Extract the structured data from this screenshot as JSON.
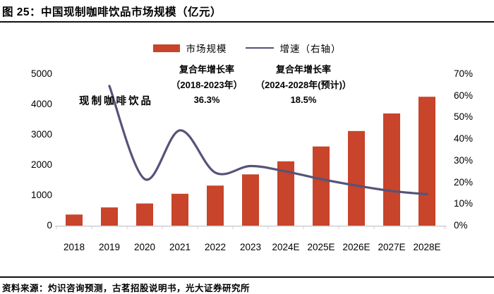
{
  "header": {
    "title": "图 25：中国现制咖啡饮品市场规模（亿元）"
  },
  "legend": {
    "items": [
      {
        "swatch": "bar-swatch",
        "label": "市场规模"
      },
      {
        "swatch": "line-swatch",
        "label": "增速（右轴）"
      }
    ]
  },
  "annotations": {
    "series_label": "现制咖啡饮品",
    "col1": {
      "line1": "复合年增长率",
      "line2": "（2018-2023年）",
      "value": "36.3%"
    },
    "col2": {
      "line1": "复合年增长率",
      "line2": "（2024-2028年(预计)）",
      "value": "18.5%"
    }
  },
  "chart_data": {
    "type": "combo",
    "title": "中国现制咖啡饮品市场规模（亿元）",
    "legend_position": "top",
    "grid": false,
    "categories": [
      "2018",
      "2019",
      "2020",
      "2021",
      "2022",
      "2023",
      "2024E",
      "2025E",
      "2026E",
      "2027E",
      "2028E"
    ],
    "series": [
      {
        "name": "市场规模",
        "type": "bar",
        "axis": "left",
        "color": "#c8442a",
        "values": [
          365,
          600,
          730,
          1050,
          1320,
          1690,
          2120,
          2610,
          3120,
          3700,
          4250
        ]
      },
      {
        "name": "增速（右轴）",
        "type": "line",
        "axis": "right",
        "color": "#565379",
        "x_start_index": 1,
        "values": [
          64.5,
          21.5,
          44.0,
          24.5,
          27.5,
          25.0,
          21.5,
          18.5,
          16.0,
          14.5
        ]
      }
    ],
    "left_axis": {
      "ticks": [
        0,
        1000,
        2000,
        3000,
        4000,
        5000
      ],
      "min": 0,
      "max": 5000
    },
    "right_axis": {
      "ticks": [
        "0%",
        "10%",
        "20%",
        "30%",
        "40%",
        "50%",
        "60%",
        "70%"
      ],
      "min": 0,
      "max": 70
    },
    "axis_color": "#cfcfcf"
  },
  "footer": {
    "source": "资料来源：灼识咨询预测，古茗招股说明书，光大证券研究所"
  }
}
